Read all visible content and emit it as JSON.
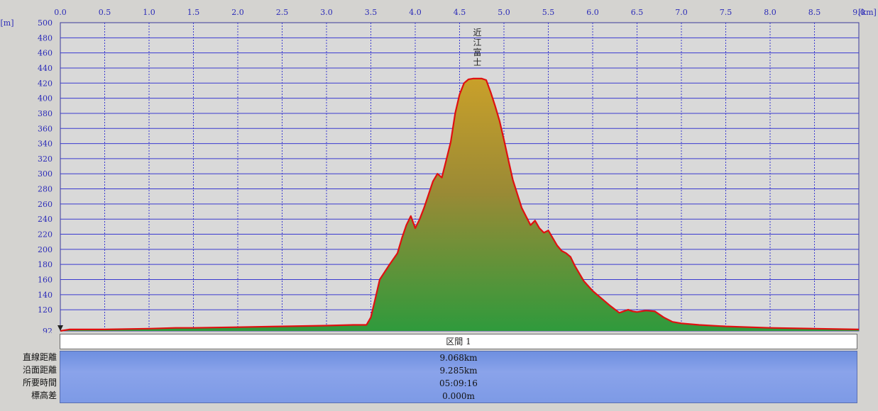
{
  "chart_data": {
    "type": "area",
    "x_unit": "[km]",
    "y_unit": "[m]",
    "xlim": [
      0,
      9
    ],
    "ylim": [
      92,
      500
    ],
    "x_ticks": [
      "0.0",
      "0.5",
      "1.0",
      "1.5",
      "2.0",
      "2.5",
      "3.0",
      "3.5",
      "4.0",
      "4.5",
      "5.0",
      "5.5",
      "6.0",
      "6.5",
      "7.0",
      "7.5",
      "8.0",
      "8.5",
      "9.0"
    ],
    "y_ticks": [
      "500",
      "480",
      "460",
      "440",
      "420",
      "400",
      "380",
      "360",
      "340",
      "320",
      "300",
      "280",
      "260",
      "240",
      "220",
      "200",
      "180",
      "160",
      "140",
      "120",
      "92"
    ],
    "annotation": {
      "text": "近江富士",
      "x": 4.7,
      "y": 428
    },
    "series": [
      {
        "x": [
          0.0,
          0.1,
          0.5,
          1.0,
          1.3,
          1.5,
          2.0,
          2.5,
          3.0,
          3.3,
          3.45,
          3.5,
          3.55,
          3.6,
          3.7,
          3.8,
          3.85,
          3.9,
          3.95,
          4.0,
          4.05,
          4.1,
          4.2,
          4.25,
          4.3,
          4.35,
          4.4,
          4.45,
          4.5,
          4.55,
          4.6,
          4.65,
          4.7,
          4.75,
          4.8,
          4.85,
          4.9,
          4.95,
          5.0,
          5.05,
          5.1,
          5.2,
          5.3,
          5.35,
          5.4,
          5.45,
          5.5,
          5.6,
          5.65,
          5.7,
          5.75,
          5.8,
          5.9,
          6.0,
          6.1,
          6.2,
          6.3,
          6.4,
          6.45,
          6.5,
          6.6,
          6.7,
          6.8,
          6.9,
          7.0,
          7.2,
          7.5,
          8.0,
          8.5,
          9.0
        ],
        "y": [
          92,
          94,
          94,
          95,
          96,
          96,
          97,
          98,
          99,
          100,
          100,
          110,
          135,
          160,
          178,
          195,
          215,
          232,
          244,
          228,
          240,
          255,
          290,
          300,
          295,
          318,
          342,
          380,
          405,
          420,
          425,
          426,
          426,
          426,
          424,
          408,
          390,
          370,
          345,
          318,
          292,
          255,
          232,
          238,
          228,
          222,
          225,
          205,
          198,
          195,
          190,
          178,
          158,
          145,
          135,
          125,
          116,
          120,
          118,
          117,
          119,
          118,
          110,
          104,
          102,
          100,
          98,
          96,
          95,
          94
        ]
      }
    ]
  },
  "section": {
    "title": "区間 1",
    "rows": [
      {
        "label": "直線距離",
        "value": "9.068km"
      },
      {
        "label": "沿面距離",
        "value": "9.285km"
      },
      {
        "label": "所要時間",
        "value": "05:09:16"
      },
      {
        "label": "標高差",
        "value": "0.000m"
      }
    ]
  },
  "colors": {
    "grid_vertical": "#3a3ad0",
    "grid_horizontal": "#3a3ad0",
    "plot_bg": "#d9d9d9",
    "line": "#e01010",
    "fill_top": "#c9a02a",
    "fill_bottom": "#2f9a3c",
    "axis_text": "#2b2bb8"
  }
}
